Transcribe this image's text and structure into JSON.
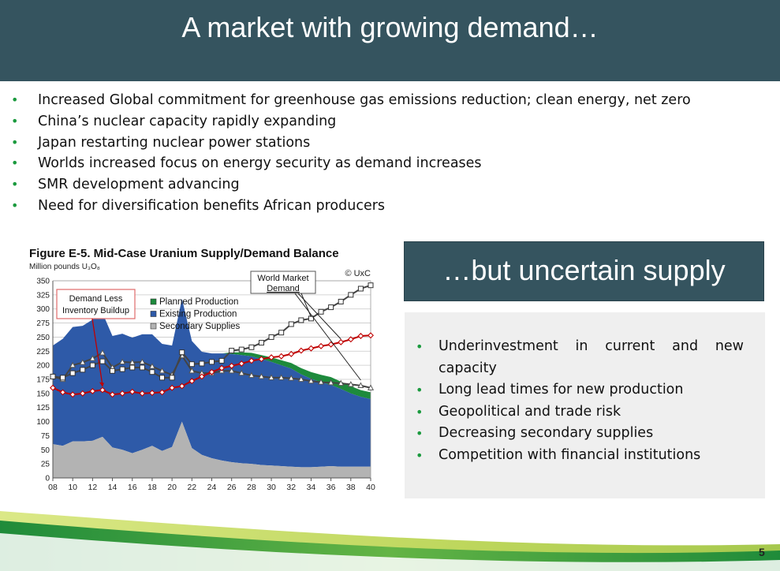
{
  "slide": {
    "title": "A market with growing demand…",
    "bullets": [
      "Increased Global commitment for greenhouse gas emissions reduction; clean energy, net zero",
      "China’s nuclear capacity rapidly expanding",
      "Japan restarting nuclear power stations",
      "Worlds increased focus on energy security as demand increases",
      "SMR development advancing",
      "Need for diversification benefits African producers"
    ],
    "supply_title": "…but uncertain supply",
    "supply_bullets": [
      "Underinvestment in current and new capacity",
      "Long lead times for new production",
      "Geopolitical and trade risk",
      "Decreasing secondary supplies",
      "Competition with financial institutions"
    ],
    "page_number": "5",
    "bullet_symbol": "•"
  },
  "colors": {
    "header": "#35545f",
    "bullet": "#1b9a3e",
    "existing": "#2e5aa8",
    "planned": "#1d8a3c",
    "secondary": "#b3b3b3",
    "demand": "#c00000",
    "market": "#555555"
  },
  "chart_data": {
    "type": "area",
    "title": "Figure E-5. Mid-Case Uranium Supply/Demand Balance",
    "ylabel": "Million pounds U₃O₈",
    "copyright": "© UxC",
    "ylim": [
      0,
      350
    ],
    "yticks": [
      0,
      25,
      50,
      75,
      100,
      125,
      150,
      175,
      200,
      225,
      250,
      275,
      300,
      325,
      350
    ],
    "xticks": [
      "08",
      "10",
      "12",
      "14",
      "16",
      "18",
      "20",
      "22",
      "24",
      "26",
      "28",
      "30",
      "32",
      "34",
      "36",
      "38",
      "40"
    ],
    "x": [
      2008,
      2009,
      2010,
      2011,
      2012,
      2013,
      2014,
      2015,
      2016,
      2017,
      2018,
      2019,
      2020,
      2021,
      2022,
      2023,
      2024,
      2025,
      2026,
      2027,
      2028,
      2029,
      2030,
      2031,
      2032,
      2033,
      2034,
      2035,
      2036,
      2037,
      2038,
      2039,
      2040
    ],
    "legend": [
      "Planned Production",
      "Existing Production",
      "Secondary Supplies"
    ],
    "annotations": [
      "Demand Less Inventory Buildup",
      "World Market Demand"
    ],
    "series": [
      {
        "name": "Secondary Supplies",
        "values": [
          60,
          57,
          65,
          65,
          66,
          73,
          54,
          50,
          44,
          50,
          57,
          48,
          55,
          100,
          53,
          41,
          35,
          31,
          28,
          26,
          25,
          23,
          22,
          21,
          20,
          19,
          19,
          20,
          21,
          20,
          20,
          20,
          20
        ]
      },
      {
        "name": "Existing Production",
        "values": [
          175,
          190,
          203,
          205,
          215,
          220,
          198,
          206,
          205,
          205,
          198,
          190,
          180,
          218,
          190,
          183,
          186,
          190,
          192,
          192,
          191,
          188,
          184,
          179,
          174,
          165,
          157,
          150,
          144,
          138,
          130,
          124,
          120
        ]
      },
      {
        "name": "Planned Production",
        "values": [
          0,
          0,
          0,
          0,
          0,
          0,
          0,
          0,
          0,
          0,
          0,
          0,
          0,
          0,
          0,
          0,
          0,
          0,
          3,
          5,
          6,
          7,
          8,
          9,
          10,
          11,
          12,
          13,
          14,
          13,
          13,
          12,
          12
        ]
      },
      {
        "name": "World Market Demand",
        "values": [
          180,
          178,
          186,
          192,
          200,
          207,
          190,
          193,
          196,
          196,
          188,
          178,
          178,
          223,
          202,
          203,
          206,
          208,
          226,
          228,
          232,
          240,
          250,
          258,
          273,
          280,
          283,
          295,
          303,
          313,
          325,
          336,
          342
        ]
      },
      {
        "name": "Demand Less Inventory Buildup",
        "values": [
          160,
          152,
          148,
          150,
          154,
          156,
          148,
          150,
          153,
          150,
          151,
          152,
          160,
          163,
          172,
          180,
          188,
          195,
          199,
          203,
          208,
          211,
          214,
          216,
          220,
          226,
          230,
          234,
          237,
          241,
          246,
          252,
          253
        ]
      },
      {
        "name": "Secondary Supplies + Existing Production",
        "values": [
          180,
          175,
          200,
          205,
          212,
          222,
          196,
          206,
          205,
          206,
          198,
          190,
          183,
          217,
          190,
          186,
          186,
          190,
          190,
          186,
          182,
          180,
          178,
          178,
          177,
          175,
          172,
          170,
          169,
          168,
          166,
          164,
          160
        ]
      }
    ]
  }
}
